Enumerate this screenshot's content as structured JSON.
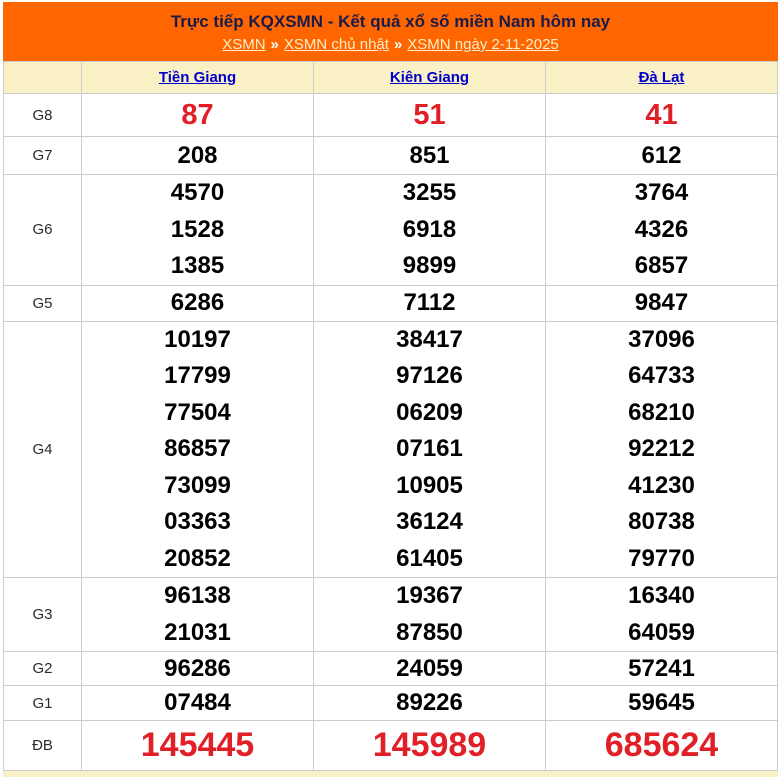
{
  "header": {
    "title": "Trực tiếp KQXSMN - Kết quả xổ số miền Nam hôm nay",
    "separator": "»",
    "breadcrumb": [
      {
        "label": "XSMN"
      },
      {
        "label": "XSMN chủ nhật"
      },
      {
        "label": "XSMN ngày 2-11-2025"
      }
    ]
  },
  "colors": {
    "banner_bg": "#ff6600",
    "banner_title": "#1b1b4a",
    "breadcrumb_link": "#fceec6",
    "header_row_bg": "#faf0c6",
    "province_link": "#0000cc",
    "highlight_red": "#e01f26",
    "number_black": "#000000",
    "table_border": "#cccccc"
  },
  "table": {
    "provinces": [
      "Tiền Giang",
      "Kiên Giang",
      "Đà Lạt"
    ],
    "rows": [
      {
        "prize": "G8",
        "cells": [
          [
            "87"
          ],
          [
            "51"
          ],
          [
            "41"
          ]
        ]
      },
      {
        "prize": "G7",
        "cells": [
          [
            "208"
          ],
          [
            "851"
          ],
          [
            "612"
          ]
        ]
      },
      {
        "prize": "G6",
        "cells": [
          [
            "4570",
            "1528",
            "1385"
          ],
          [
            "3255",
            "6918",
            "9899"
          ],
          [
            "3764",
            "4326",
            "6857"
          ]
        ]
      },
      {
        "prize": "G5",
        "cells": [
          [
            "6286"
          ],
          [
            "7112"
          ],
          [
            "9847"
          ]
        ]
      },
      {
        "prize": "G4",
        "cells": [
          [
            "10197",
            "17799",
            "77504",
            "86857",
            "73099",
            "03363",
            "20852"
          ],
          [
            "38417",
            "97126",
            "06209",
            "07161",
            "10905",
            "36124",
            "61405"
          ],
          [
            "37096",
            "64733",
            "68210",
            "92212",
            "41230",
            "80738",
            "79770"
          ]
        ]
      },
      {
        "prize": "G3",
        "cells": [
          [
            "96138",
            "21031"
          ],
          [
            "19367",
            "87850"
          ],
          [
            "16340",
            "64059"
          ]
        ]
      },
      {
        "prize": "G2",
        "cells": [
          [
            "96286"
          ],
          [
            "24059"
          ],
          [
            "57241"
          ]
        ]
      },
      {
        "prize": "G1",
        "cells": [
          [
            "07484"
          ],
          [
            "89226"
          ],
          [
            "59645"
          ]
        ]
      },
      {
        "prize": "ĐB",
        "cells": [
          [
            "145445"
          ],
          [
            "145989"
          ],
          [
            "685624"
          ]
        ]
      }
    ]
  }
}
